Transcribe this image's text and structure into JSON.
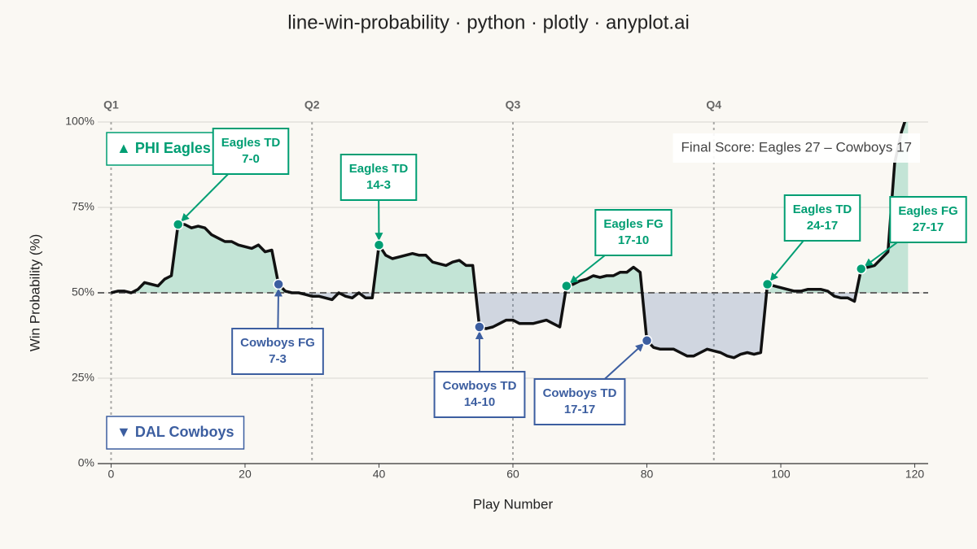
{
  "chart_data": {
    "type": "line",
    "title": "line-win-probability · python · plotly · anyplot.ai",
    "xlabel": "Play Number",
    "ylabel": "Win Probability (%)",
    "xlim": [
      -2,
      122
    ],
    "ylim": [
      0,
      100
    ],
    "xticks": [
      0,
      20,
      40,
      60,
      80,
      100,
      120
    ],
    "yticks": [
      {
        "value": 0,
        "label": "0%"
      },
      {
        "value": 25,
        "label": "25%"
      },
      {
        "value": 50,
        "label": "50%"
      },
      {
        "value": 75,
        "label": "75%"
      },
      {
        "value": 100,
        "label": "100%"
      }
    ],
    "grid": true,
    "baseline": 50,
    "above_color": "#009e73",
    "below_color": "#3c5ea0",
    "x": [
      0,
      1,
      2,
      3,
      4,
      5,
      6,
      7,
      8,
      9,
      10,
      11,
      12,
      13,
      14,
      15,
      16,
      17,
      18,
      19,
      20,
      21,
      22,
      23,
      24,
      25,
      26,
      27,
      28,
      29,
      30,
      31,
      32,
      33,
      34,
      35,
      36,
      37,
      38,
      39,
      40,
      41,
      42,
      43,
      44,
      45,
      46,
      47,
      48,
      49,
      50,
      51,
      52,
      53,
      54,
      55,
      56,
      57,
      58,
      59,
      60,
      61,
      62,
      63,
      64,
      65,
      66,
      67,
      68,
      69,
      70,
      71,
      72,
      73,
      74,
      75,
      76,
      77,
      78,
      79,
      80,
      81,
      82,
      83,
      84,
      85,
      86,
      87,
      88,
      89,
      90,
      91,
      92,
      93,
      94,
      95,
      96,
      97,
      98,
      99,
      100,
      101,
      102,
      103,
      104,
      105,
      106,
      107,
      108,
      109,
      110,
      111,
      112,
      113,
      114,
      115,
      116,
      117,
      118,
      119
    ],
    "series": [
      {
        "color": "#111111",
        "values": [
          50,
          50.5,
          50.5,
          50,
          51,
          53,
          52.5,
          52,
          54,
          55,
          70,
          70,
          69,
          69.5,
          69,
          67,
          66,
          65,
          65,
          64,
          63.5,
          63,
          64,
          62,
          62.5,
          52.5,
          50.5,
          50,
          50,
          49.5,
          49,
          49,
          48.5,
          48,
          50,
          49,
          48.5,
          50,
          48.5,
          48.5,
          64,
          61,
          60,
          60.5,
          61,
          61.5,
          61,
          61,
          59,
          58.5,
          58,
          59,
          59.5,
          58,
          58,
          40,
          39.5,
          40,
          41,
          42,
          42,
          41,
          41,
          41,
          41.5,
          42,
          41,
          40,
          52,
          52.5,
          53.5,
          54,
          55,
          54.5,
          55,
          55,
          56,
          56,
          57.5,
          56,
          36,
          34,
          33.5,
          33.5,
          33.5,
          32.5,
          31.5,
          31.5,
          32.5,
          33.5,
          33,
          32.5,
          31.5,
          31,
          32,
          32.5,
          32,
          32.5,
          52.5,
          52,
          51.5,
          51,
          50.5,
          50.5,
          51,
          51,
          51,
          50.5,
          49,
          48.5,
          48.5,
          47.5,
          57,
          57.5,
          58,
          60,
          62,
          88,
          97,
          103
        ]
      }
    ],
    "quarters": [
      {
        "label": "Q1",
        "x": 0
      },
      {
        "label": "Q2",
        "x": 30
      },
      {
        "label": "Q3",
        "x": 60
      },
      {
        "label": "Q4",
        "x": 90
      }
    ],
    "legend": {
      "top": "▲ PHI Eagles",
      "bottom": "▼ DAL Cowboys"
    },
    "final_score": "Final Score: Eagles 27 – Cowboys 17",
    "annotations": [
      {
        "x": 10,
        "label": "Eagles TD",
        "score": "7-0",
        "color": "#009e73"
      },
      {
        "x": 25,
        "label": "Cowboys FG",
        "score": "7-3",
        "color": "#3c5ea0"
      },
      {
        "x": 40,
        "label": "Eagles TD",
        "score": "14-3",
        "color": "#009e73"
      },
      {
        "x": 55,
        "label": "Cowboys TD",
        "score": "14-10",
        "color": "#3c5ea0"
      },
      {
        "x": 68,
        "label": "Eagles FG",
        "score": "17-10",
        "color": "#009e73"
      },
      {
        "x": 80,
        "label": "Cowboys TD",
        "score": "17-17",
        "color": "#3c5ea0"
      },
      {
        "x": 98,
        "label": "Eagles TD",
        "score": "24-17",
        "color": "#009e73"
      },
      {
        "x": 112,
        "label": "Eagles FG",
        "score": "27-17",
        "color": "#009e73"
      }
    ]
  }
}
